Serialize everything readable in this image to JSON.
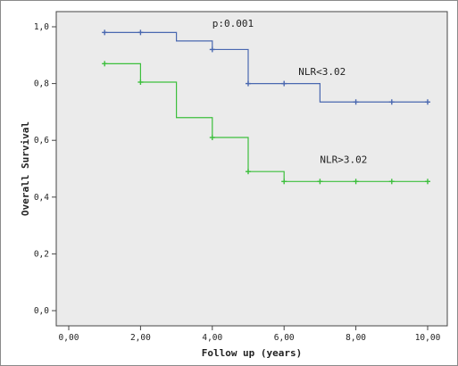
{
  "chart_data": {
    "type": "line",
    "step": true,
    "title": "",
    "xlabel": "Follow up (years)",
    "ylabel": "Overall Survival",
    "xlim": [
      0,
      10
    ],
    "ylim": [
      0,
      1
    ],
    "x_ticks": [
      0,
      2,
      4,
      6,
      8,
      10
    ],
    "x_tick_labels": [
      "0,00",
      "2,00",
      "4,00",
      "6,00",
      "8,00",
      "10,00"
    ],
    "y_ticks": [
      0,
      0.2,
      0.4,
      0.6,
      0.8,
      1.0
    ],
    "y_tick_labels": [
      "0,0",
      "0,2",
      "0,4",
      "0,6",
      "0,8",
      "1,0"
    ],
    "grid": false,
    "background": "#ebebeb",
    "annotations": [
      {
        "text": "p:0.001",
        "x": 4.0,
        "y": 1.0
      },
      {
        "text": "NLR<3.02",
        "x": 6.4,
        "y": 0.83
      },
      {
        "text": "NLR>3.02",
        "x": 7.0,
        "y": 0.52
      }
    ],
    "series": [
      {
        "color": "#4a68b0",
        "steps": [
          [
            1,
            0.98
          ],
          [
            3,
            0.95
          ],
          [
            4,
            0.92
          ],
          [
            5,
            0.8
          ],
          [
            7,
            0.735
          ],
          [
            10,
            0.735
          ]
        ],
        "censored": [
          {
            "x": 1,
            "y": 0.98
          },
          {
            "x": 2,
            "y": 0.98
          },
          {
            "x": 4,
            "y": 0.92
          },
          {
            "x": 5,
            "y": 0.8
          },
          {
            "x": 6,
            "y": 0.8
          },
          {
            "x": 8,
            "y": 0.735
          },
          {
            "x": 9,
            "y": 0.735
          },
          {
            "x": 10,
            "y": 0.735
          }
        ]
      },
      {
        "color": "#3cbf3c",
        "steps": [
          [
            1,
            0.87
          ],
          [
            2,
            0.805
          ],
          [
            3,
            0.68
          ],
          [
            4,
            0.61
          ],
          [
            5,
            0.49
          ],
          [
            6,
            0.455
          ],
          [
            10,
            0.455
          ]
        ],
        "censored": [
          {
            "x": 1,
            "y": 0.87
          },
          {
            "x": 2,
            "y": 0.805
          },
          {
            "x": 4,
            "y": 0.61
          },
          {
            "x": 5,
            "y": 0.49
          },
          {
            "x": 6,
            "y": 0.455
          },
          {
            "x": 7,
            "y": 0.455
          },
          {
            "x": 8,
            "y": 0.455
          },
          {
            "x": 9,
            "y": 0.455
          },
          {
            "x": 10,
            "y": 0.455
          }
        ]
      }
    ]
  }
}
